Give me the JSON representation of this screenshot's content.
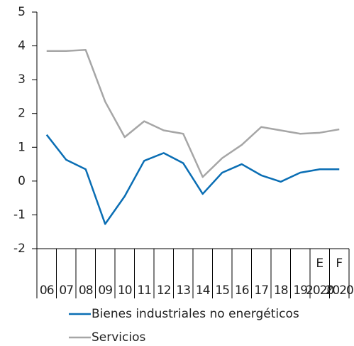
{
  "chart_data": {
    "type": "line",
    "categories": [
      "06",
      "07",
      "08",
      "09",
      "10",
      "11",
      "12",
      "13",
      "14",
      "15",
      "16",
      "17",
      "18",
      "19",
      "2020",
      "2020"
    ],
    "category_sublabels": [
      null,
      null,
      null,
      null,
      null,
      null,
      null,
      null,
      null,
      null,
      null,
      null,
      null,
      null,
      "E",
      "F"
    ],
    "series": [
      {
        "name": "Bienes industriales no energéticos",
        "color": "#0a6eb4",
        "values": [
          1.37,
          0.63,
          0.35,
          -1.27,
          -0.45,
          0.6,
          0.83,
          0.53,
          -0.38,
          0.25,
          0.5,
          0.17,
          -0.02,
          0.25,
          0.35,
          0.35
        ]
      },
      {
        "name": "Servicios",
        "color": "#a6a6a6",
        "values": [
          3.85,
          3.85,
          3.88,
          2.35,
          1.3,
          1.77,
          1.5,
          1.4,
          0.12,
          0.68,
          1.07,
          1.6,
          1.5,
          1.4,
          1.43,
          1.53
        ]
      }
    ],
    "ylim": [
      -2,
      5
    ],
    "yticks": [
      -2,
      -1,
      0,
      1,
      2,
      3,
      4,
      5
    ]
  }
}
